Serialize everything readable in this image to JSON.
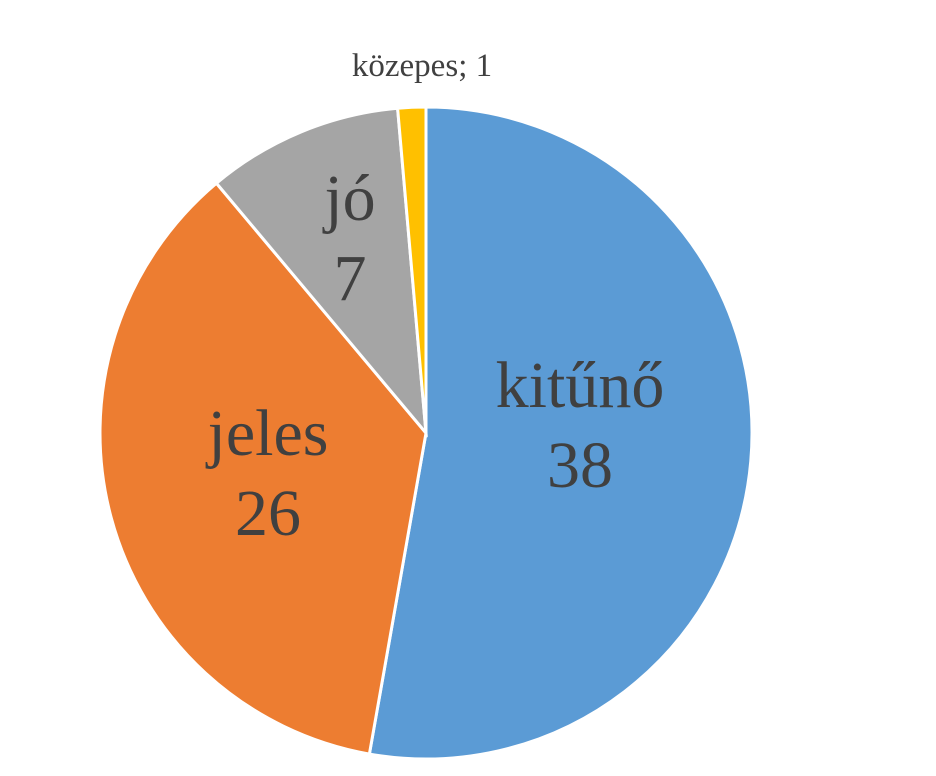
{
  "chart_data": {
    "type": "pie",
    "categories": [
      "kitűnő",
      "jeles",
      "jó",
      "közepes"
    ],
    "values": [
      38,
      26,
      7,
      1
    ],
    "colors": [
      "#5b9bd5",
      "#ed7d31",
      "#a5a5a5",
      "#ffc000"
    ],
    "label_separator": "; "
  }
}
